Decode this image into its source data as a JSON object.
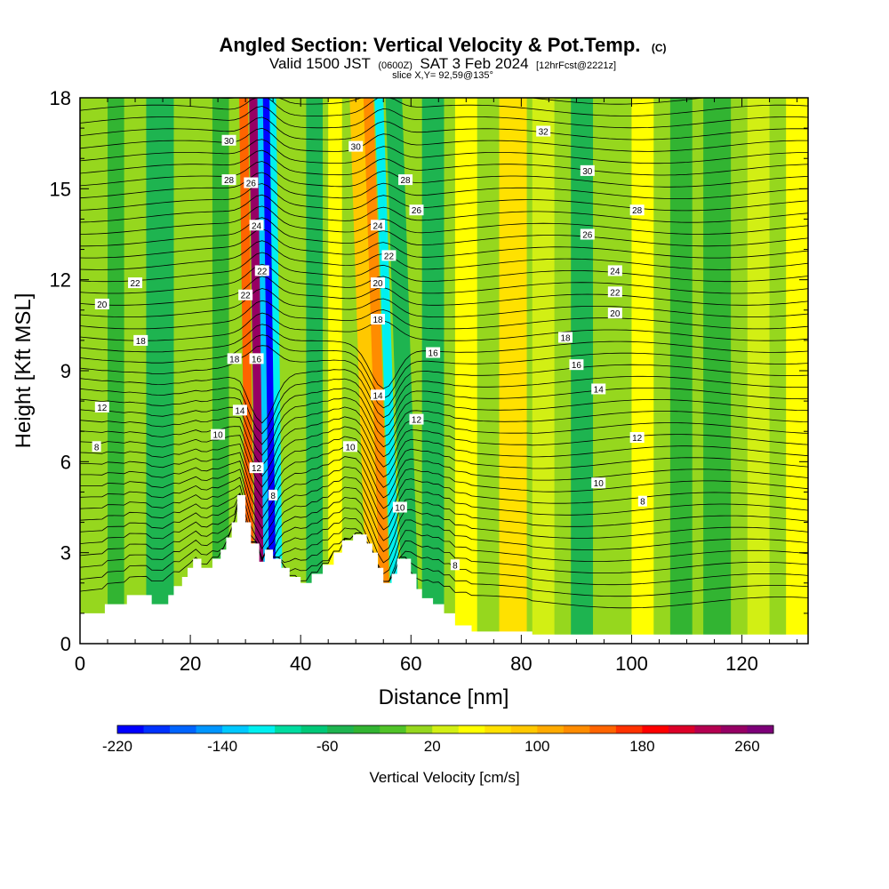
{
  "header": {
    "title": "Angled Section: Vertical Velocity & Pot.Temp.",
    "title_unit": "(C)",
    "valid_prefix": "Valid 1500 JST",
    "valid_utc": "(0600Z)",
    "valid_date": "SAT 3 Feb 2024",
    "forecast": "[12hrFcst@2221z]",
    "slice": "slice X,Y= 92,59@135°"
  },
  "chart_data": {
    "type": "heatmap",
    "xlabel": "Distance [nm]",
    "ylabel": "Height [Kft MSL]",
    "xlim": [
      0,
      132
    ],
    "ylim": [
      0,
      18
    ],
    "x_ticks": [
      0,
      20,
      40,
      60,
      80,
      100,
      120
    ],
    "x_tick_labels": [
      "0",
      "20",
      "40",
      "60",
      "80",
      "100",
      "120"
    ],
    "y_ticks": [
      0,
      3,
      6,
      9,
      12,
      15,
      18
    ],
    "y_tick_labels": [
      "0",
      "3",
      "6",
      "9",
      "12",
      "15",
      "18"
    ],
    "colorbar": {
      "title": "Vertical Velocity [cm/s]",
      "min": -220,
      "max": 280,
      "step": 20,
      "tick_values": [
        -220,
        -140,
        -60,
        20,
        100,
        180,
        260
      ],
      "tick_labels": [
        "-220",
        "-140",
        "-60",
        "20",
        "100",
        "180",
        "260"
      ],
      "colors": [
        "#0000ff",
        "#0032ff",
        "#0064ff",
        "#0096ff",
        "#00c8ff",
        "#00f0f0",
        "#00dca0",
        "#00c878",
        "#1eb450",
        "#32b432",
        "#50c328",
        "#96d71e",
        "#d2ef14",
        "#ffff00",
        "#ffe100",
        "#ffc800",
        "#ffaa00",
        "#ff8c00",
        "#ff6400",
        "#ff3200",
        "#ff0000",
        "#dc0028",
        "#b40050",
        "#960064",
        "#7d0078"
      ]
    },
    "velocity_bands": [
      {
        "x": 5,
        "w": 3,
        "value": -40
      },
      {
        "x": 12,
        "w": 5,
        "value": -60
      },
      {
        "x": 24,
        "w": 3,
        "value": -40
      },
      {
        "x": 29.5,
        "w": 1.6,
        "value": 140
      },
      {
        "x": 31.3,
        "w": 1.8,
        "value": 240
      },
      {
        "x": 32.8,
        "w": 1.0,
        "value": -140
      },
      {
        "x": 33.8,
        "w": 1.4,
        "value": -220
      },
      {
        "x": 35.0,
        "w": 1.2,
        "value": -120
      },
      {
        "x": 41,
        "w": 3,
        "value": -60
      },
      {
        "x": 45,
        "w": 2.5,
        "value": 40
      },
      {
        "x": 50.5,
        "w": 3,
        "value": 80
      },
      {
        "x": 53.0,
        "w": 1.8,
        "value": 120
      },
      {
        "x": 55.0,
        "w": 1.6,
        "value": -120
      },
      {
        "x": 57,
        "w": 3,
        "value": -60
      },
      {
        "x": 62,
        "w": 4,
        "value": -60
      },
      {
        "x": 68,
        "w": 4,
        "value": 40
      },
      {
        "x": 76,
        "w": 5,
        "value": 60
      },
      {
        "x": 82,
        "w": 4,
        "value": 20
      },
      {
        "x": 89,
        "w": 4,
        "value": -60
      },
      {
        "x": 100,
        "w": 4,
        "value": 40
      },
      {
        "x": 107,
        "w": 4,
        "value": -40
      },
      {
        "x": 113,
        "w": 5,
        "value": -40
      },
      {
        "x": 121,
        "w": 4,
        "value": 20
      },
      {
        "x": 128,
        "w": 4,
        "value": 40
      }
    ],
    "terrain": [
      [
        0,
        1
      ],
      [
        4.5,
        1
      ],
      [
        4.5,
        1.3
      ],
      [
        8.5,
        1.3
      ],
      [
        8.5,
        1.6
      ],
      [
        13,
        1.6
      ],
      [
        13,
        1.3
      ],
      [
        16,
        1.3
      ],
      [
        16,
        1.6
      ],
      [
        17,
        1.6
      ],
      [
        17,
        1.9
      ],
      [
        18.5,
        1.9
      ],
      [
        18.5,
        2.2
      ],
      [
        19.5,
        2.2
      ],
      [
        19.5,
        2.5
      ],
      [
        20.5,
        2.5
      ],
      [
        20.5,
        2.8
      ],
      [
        22,
        2.8
      ],
      [
        22,
        2.5
      ],
      [
        24,
        2.5
      ],
      [
        24,
        2.8
      ],
      [
        25.5,
        2.8
      ],
      [
        25.5,
        3.1
      ],
      [
        26.5,
        3.1
      ],
      [
        26.5,
        3.5
      ],
      [
        27.5,
        3.5
      ],
      [
        27.5,
        4.0
      ],
      [
        28.5,
        4.0
      ],
      [
        28.5,
        4.9
      ],
      [
        30,
        4.9
      ],
      [
        30,
        4.0
      ],
      [
        31,
        4.0
      ],
      [
        31,
        3.3
      ],
      [
        32.5,
        3.3
      ],
      [
        32.5,
        2.7
      ],
      [
        33.5,
        2.7
      ],
      [
        33.5,
        3.1
      ],
      [
        35,
        3.1
      ],
      [
        35,
        2.8
      ],
      [
        36.5,
        2.8
      ],
      [
        36.5,
        2.5
      ],
      [
        38,
        2.5
      ],
      [
        38,
        2.2
      ],
      [
        40,
        2.2
      ],
      [
        40,
        2.0
      ],
      [
        42,
        2.0
      ],
      [
        42,
        2.3
      ],
      [
        44,
        2.3
      ],
      [
        44,
        2.6
      ],
      [
        46,
        2.6
      ],
      [
        46,
        3.0
      ],
      [
        47.5,
        3.0
      ],
      [
        47.5,
        3.4
      ],
      [
        49.5,
        3.4
      ],
      [
        49.5,
        3.6
      ],
      [
        52,
        3.6
      ],
      [
        52,
        3.3
      ],
      [
        53,
        3.3
      ],
      [
        53,
        3.0
      ],
      [
        54,
        3.0
      ],
      [
        54,
        2.5
      ],
      [
        55,
        2.5
      ],
      [
        55,
        2.0
      ],
      [
        56.5,
        2.0
      ],
      [
        56.5,
        2.3
      ],
      [
        57.5,
        2.3
      ],
      [
        57.5,
        2.8
      ],
      [
        60,
        2.8
      ],
      [
        60,
        2.3
      ],
      [
        61,
        2.3
      ],
      [
        61,
        1.8
      ],
      [
        62,
        1.8
      ],
      [
        62,
        1.5
      ],
      [
        64,
        1.5
      ],
      [
        64,
        1.3
      ],
      [
        66,
        1.3
      ],
      [
        66,
        1.0
      ],
      [
        68,
        1.0
      ],
      [
        68,
        0.6
      ],
      [
        71,
        0.6
      ],
      [
        71,
        0.4
      ],
      [
        82,
        0.4
      ],
      [
        82,
        0.3
      ],
      [
        132,
        0.3
      ]
    ],
    "isentropes": {
      "levels": [
        4,
        6,
        8,
        10,
        12,
        14,
        16,
        18,
        20,
        22,
        24,
        26,
        28,
        30,
        32
      ],
      "labels": [
        {
          "text": "30",
          "x": 27,
          "y": 16.6
        },
        {
          "text": "28",
          "x": 27,
          "y": 15.3
        },
        {
          "text": "26",
          "x": 31,
          "y": 15.2
        },
        {
          "text": "24",
          "x": 32,
          "y": 13.8
        },
        {
          "text": "22",
          "x": 33,
          "y": 12.3
        },
        {
          "text": "22",
          "x": 30,
          "y": 11.5
        },
        {
          "text": "22",
          "x": 10,
          "y": 11.9
        },
        {
          "text": "20",
          "x": 4,
          "y": 11.2
        },
        {
          "text": "18",
          "x": 11,
          "y": 10.0
        },
        {
          "text": "18",
          "x": 28,
          "y": 9.4
        },
        {
          "text": "16",
          "x": 32,
          "y": 9.4
        },
        {
          "text": "14",
          "x": 29,
          "y": 7.7
        },
        {
          "text": "12",
          "x": 4,
          "y": 7.8
        },
        {
          "text": "10",
          "x": 25,
          "y": 6.9
        },
        {
          "text": "12",
          "x": 32,
          "y": 5.8
        },
        {
          "text": "8",
          "x": 3,
          "y": 6.5
        },
        {
          "text": "8",
          "x": 35,
          "y": 4.9
        },
        {
          "text": "30",
          "x": 50,
          "y": 16.4
        },
        {
          "text": "28",
          "x": 59,
          "y": 15.3
        },
        {
          "text": "26",
          "x": 61,
          "y": 14.3
        },
        {
          "text": "24",
          "x": 54,
          "y": 13.8
        },
        {
          "text": "22",
          "x": 56,
          "y": 12.8
        },
        {
          "text": "20",
          "x": 54,
          "y": 11.9
        },
        {
          "text": "18",
          "x": 54,
          "y": 10.7
        },
        {
          "text": "16",
          "x": 64,
          "y": 9.6
        },
        {
          "text": "14",
          "x": 54,
          "y": 8.2
        },
        {
          "text": "12",
          "x": 61,
          "y": 7.4
        },
        {
          "text": "10",
          "x": 49,
          "y": 6.5
        },
        {
          "text": "10",
          "x": 58,
          "y": 4.5
        },
        {
          "text": "8",
          "x": 68,
          "y": 2.6
        },
        {
          "text": "32",
          "x": 84,
          "y": 16.9
        },
        {
          "text": "30",
          "x": 92,
          "y": 15.6
        },
        {
          "text": "28",
          "x": 101,
          "y": 14.3
        },
        {
          "text": "26",
          "x": 92,
          "y": 13.5
        },
        {
          "text": "24",
          "x": 97,
          "y": 12.3
        },
        {
          "text": "22",
          "x": 97,
          "y": 11.6
        },
        {
          "text": "20",
          "x": 97,
          "y": 10.9
        },
        {
          "text": "18",
          "x": 88,
          "y": 10.1
        },
        {
          "text": "16",
          "x": 90,
          "y": 9.2
        },
        {
          "text": "14",
          "x": 94,
          "y": 8.4
        },
        {
          "text": "12",
          "x": 101,
          "y": 6.8
        },
        {
          "text": "10",
          "x": 94,
          "y": 5.3
        },
        {
          "text": "8",
          "x": 102,
          "y": 4.7
        }
      ]
    }
  }
}
